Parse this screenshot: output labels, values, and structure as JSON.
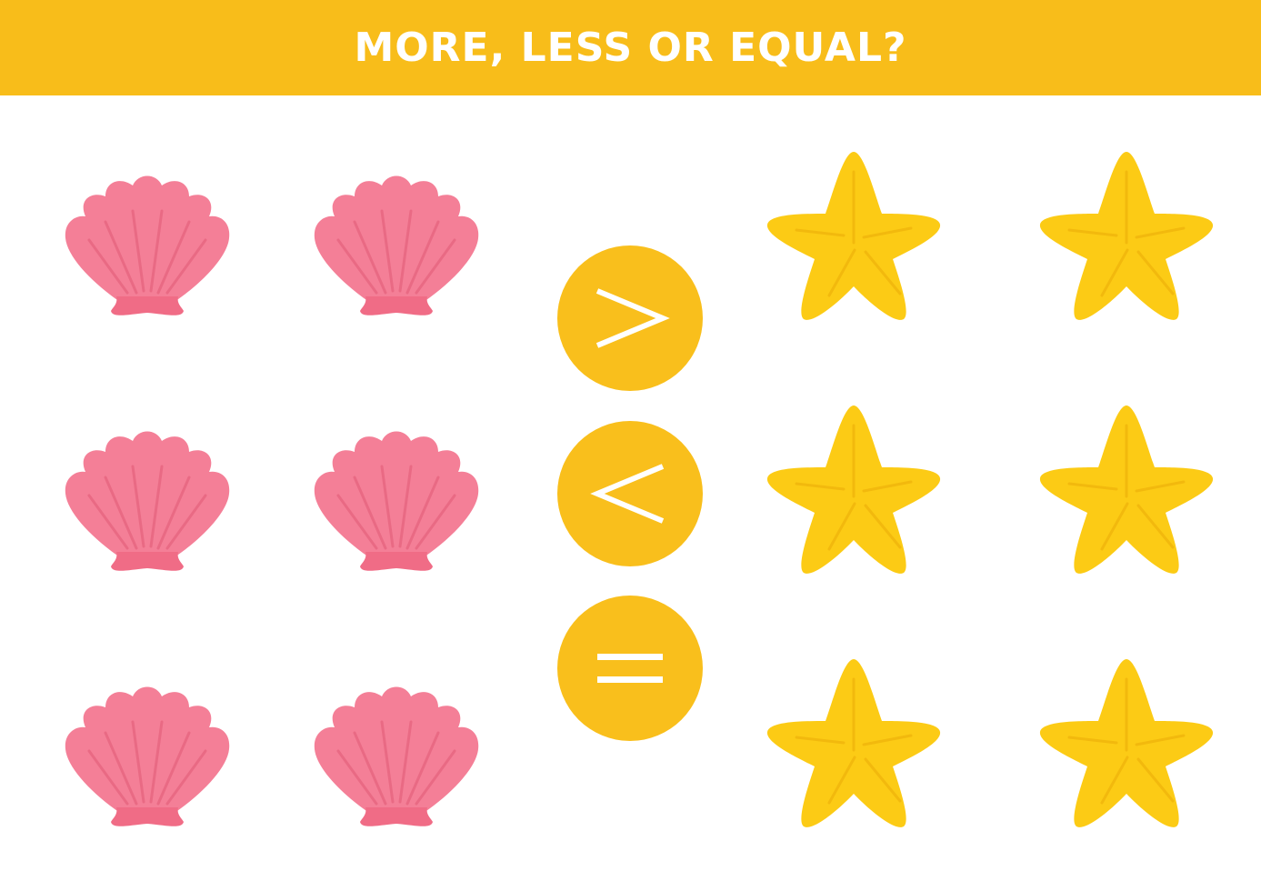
{
  "header": {
    "title": "MORE, LESS OR EQUAL?"
  },
  "left_group": {
    "object": "seashell",
    "count": 6
  },
  "right_group": {
    "object": "starfish",
    "count": 6
  },
  "signs": [
    {
      "symbol": ">",
      "meaning": "more"
    },
    {
      "symbol": "<",
      "meaning": "less"
    },
    {
      "symbol": "=",
      "meaning": "equal"
    }
  ],
  "colors": {
    "banner": "#f8bd1a",
    "shell": "#f47f97",
    "shell_base": "#f06c86",
    "star": "#fccb15",
    "sign_circle": "#f9bf1c"
  }
}
